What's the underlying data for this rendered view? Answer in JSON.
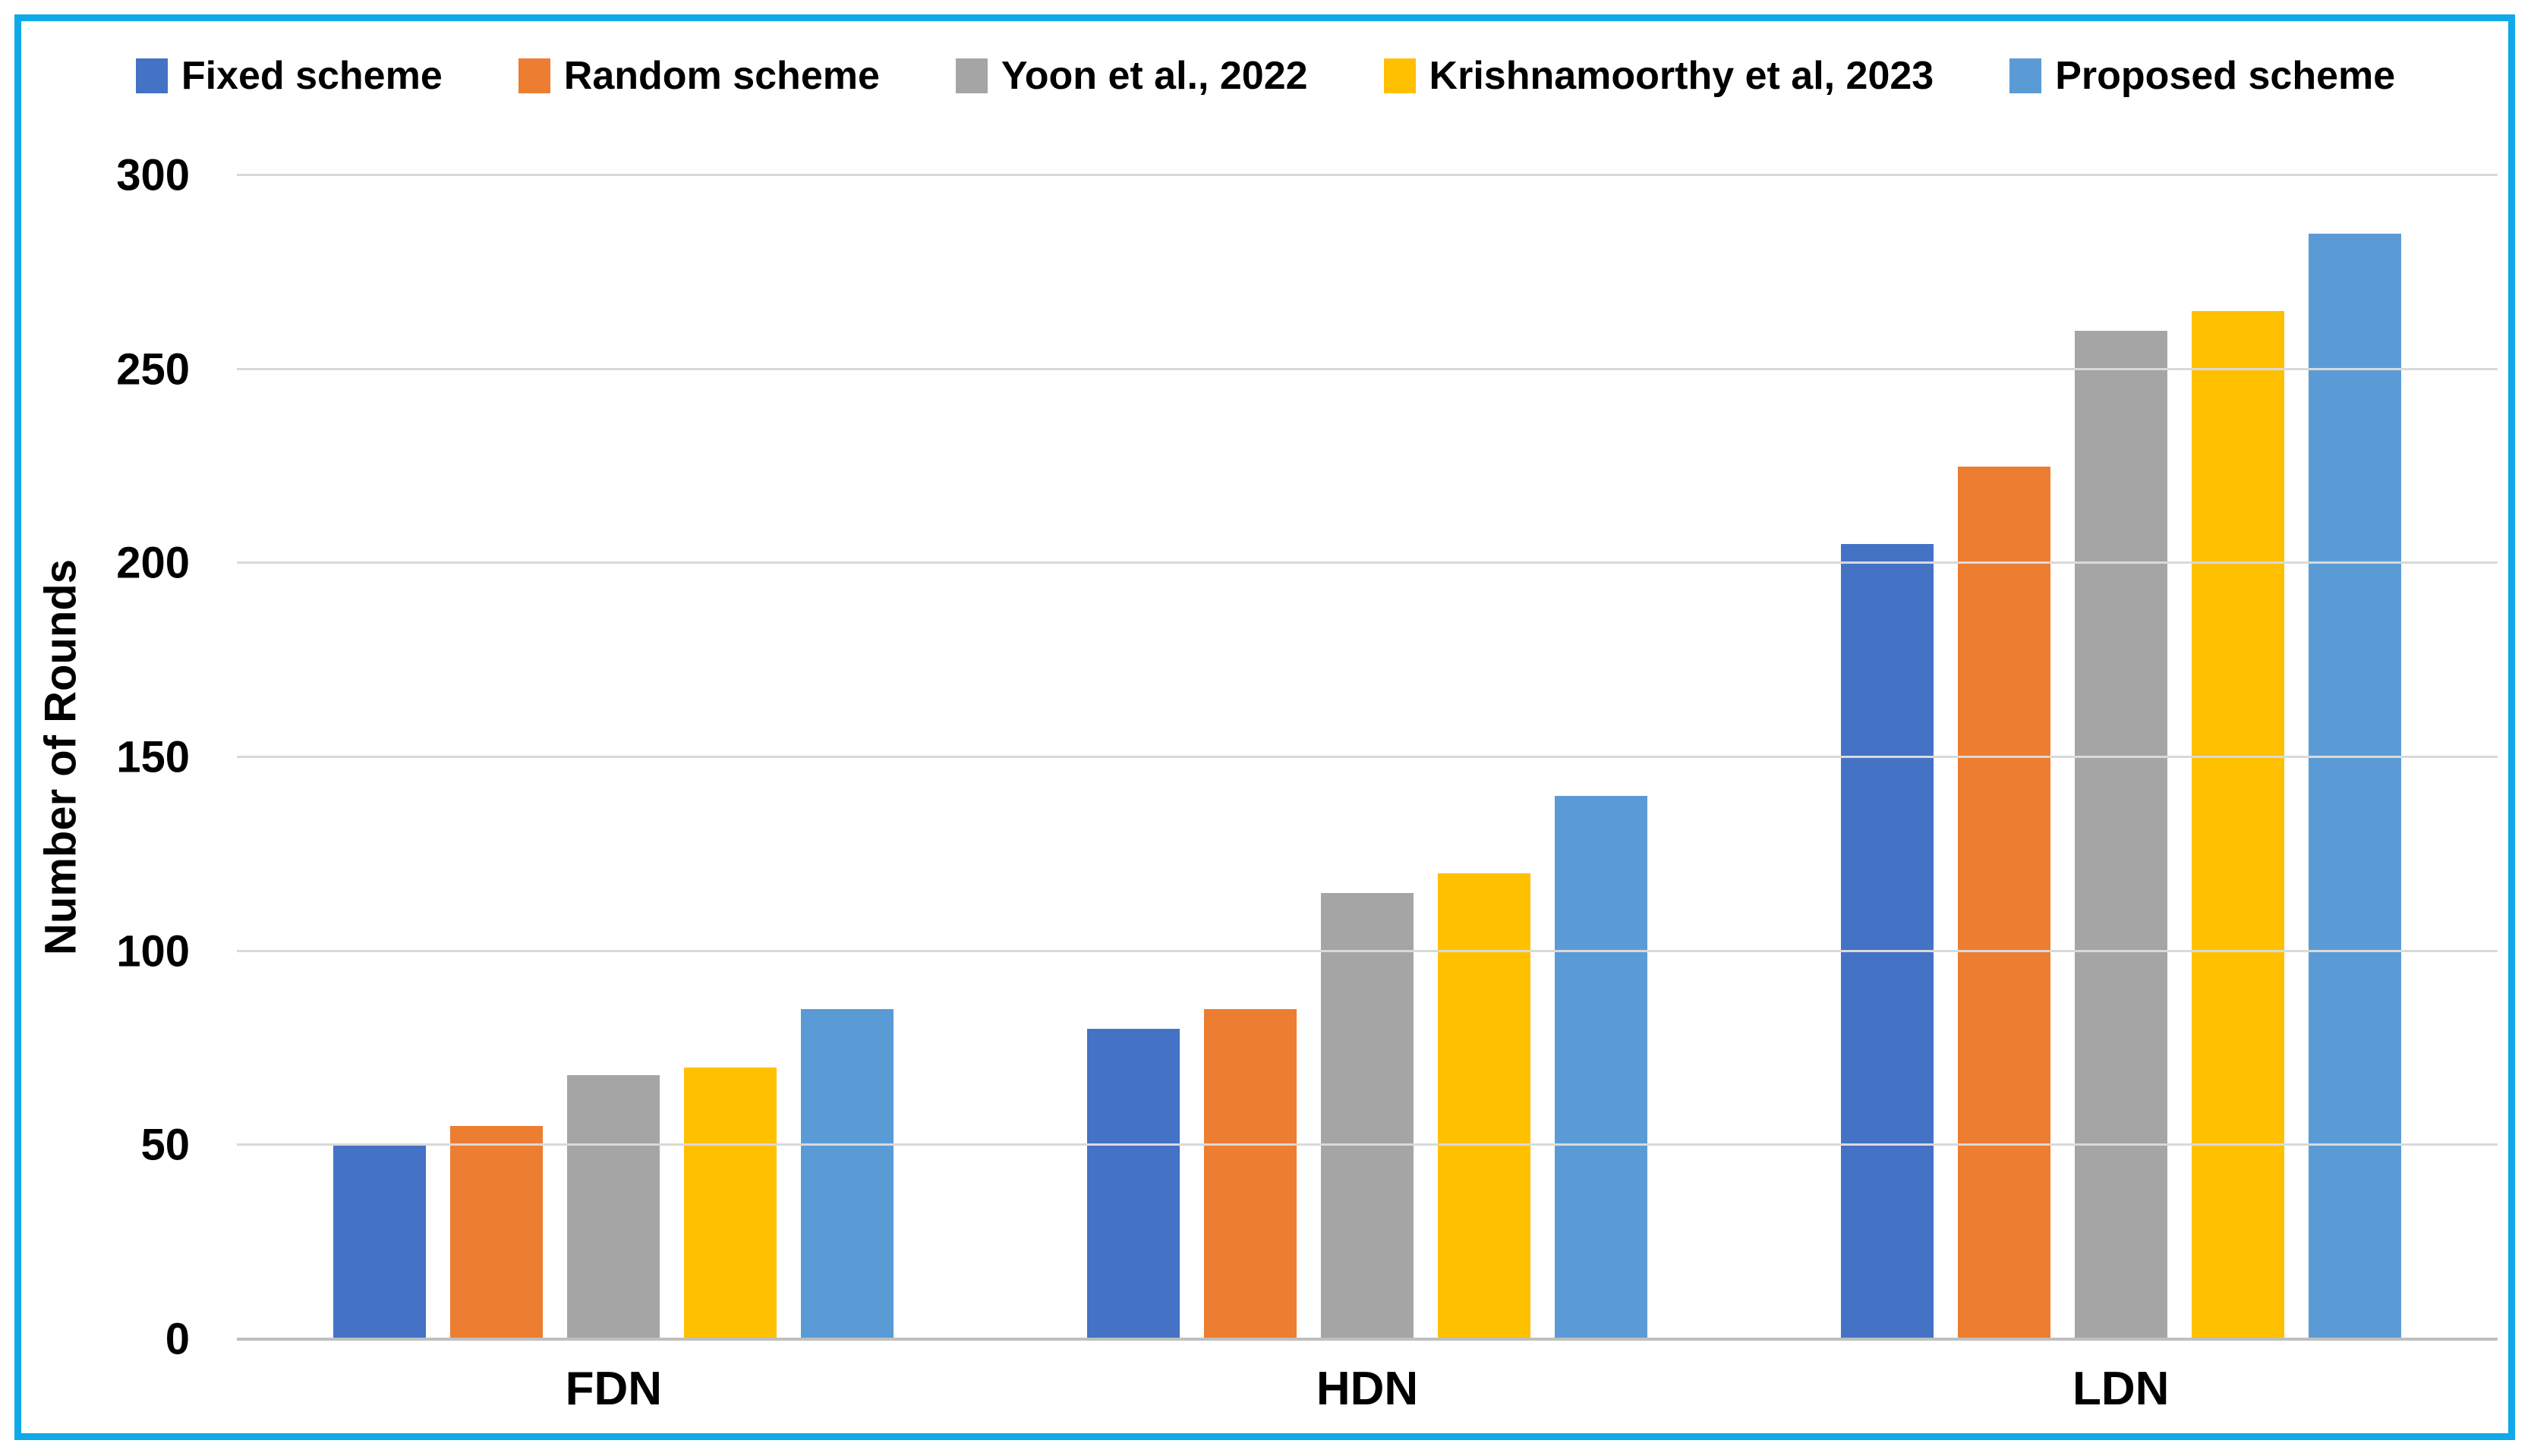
{
  "chart_data": {
    "type": "bar",
    "title": "",
    "categories": [
      "FDN",
      "HDN",
      "LDN"
    ],
    "series": [
      {
        "name": "Fixed scheme",
        "color": "#4472C4",
        "values": [
          50,
          80,
          205
        ]
      },
      {
        "name": "Random scheme",
        "color": "#ED7D31",
        "values": [
          55,
          85,
          225
        ]
      },
      {
        "name": "Yoon et al., 2022",
        "color": "#A5A5A5",
        "values": [
          68,
          115,
          260
        ]
      },
      {
        "name": "Krishnamoorthy et al, 2023",
        "color": "#FFC000",
        "values": [
          70,
          120,
          265
        ]
      },
      {
        "name": "Proposed scheme",
        "color": "#5B9BD5",
        "values": [
          85,
          140,
          285
        ]
      }
    ],
    "xlabel": "",
    "ylabel": "Number of Rounds",
    "ylim": [
      0,
      300
    ],
    "yticks": [
      0,
      50,
      100,
      150,
      200,
      250,
      300
    ],
    "grid": "horizontal",
    "legend_position": "top"
  },
  "styles": {
    "frame_border_color": "#10A9E8",
    "gridline_color": "#D9D9D9",
    "baseline_color": "#BFBFBF",
    "text_color": "#000000",
    "background_color": "#FFFFFF"
  }
}
